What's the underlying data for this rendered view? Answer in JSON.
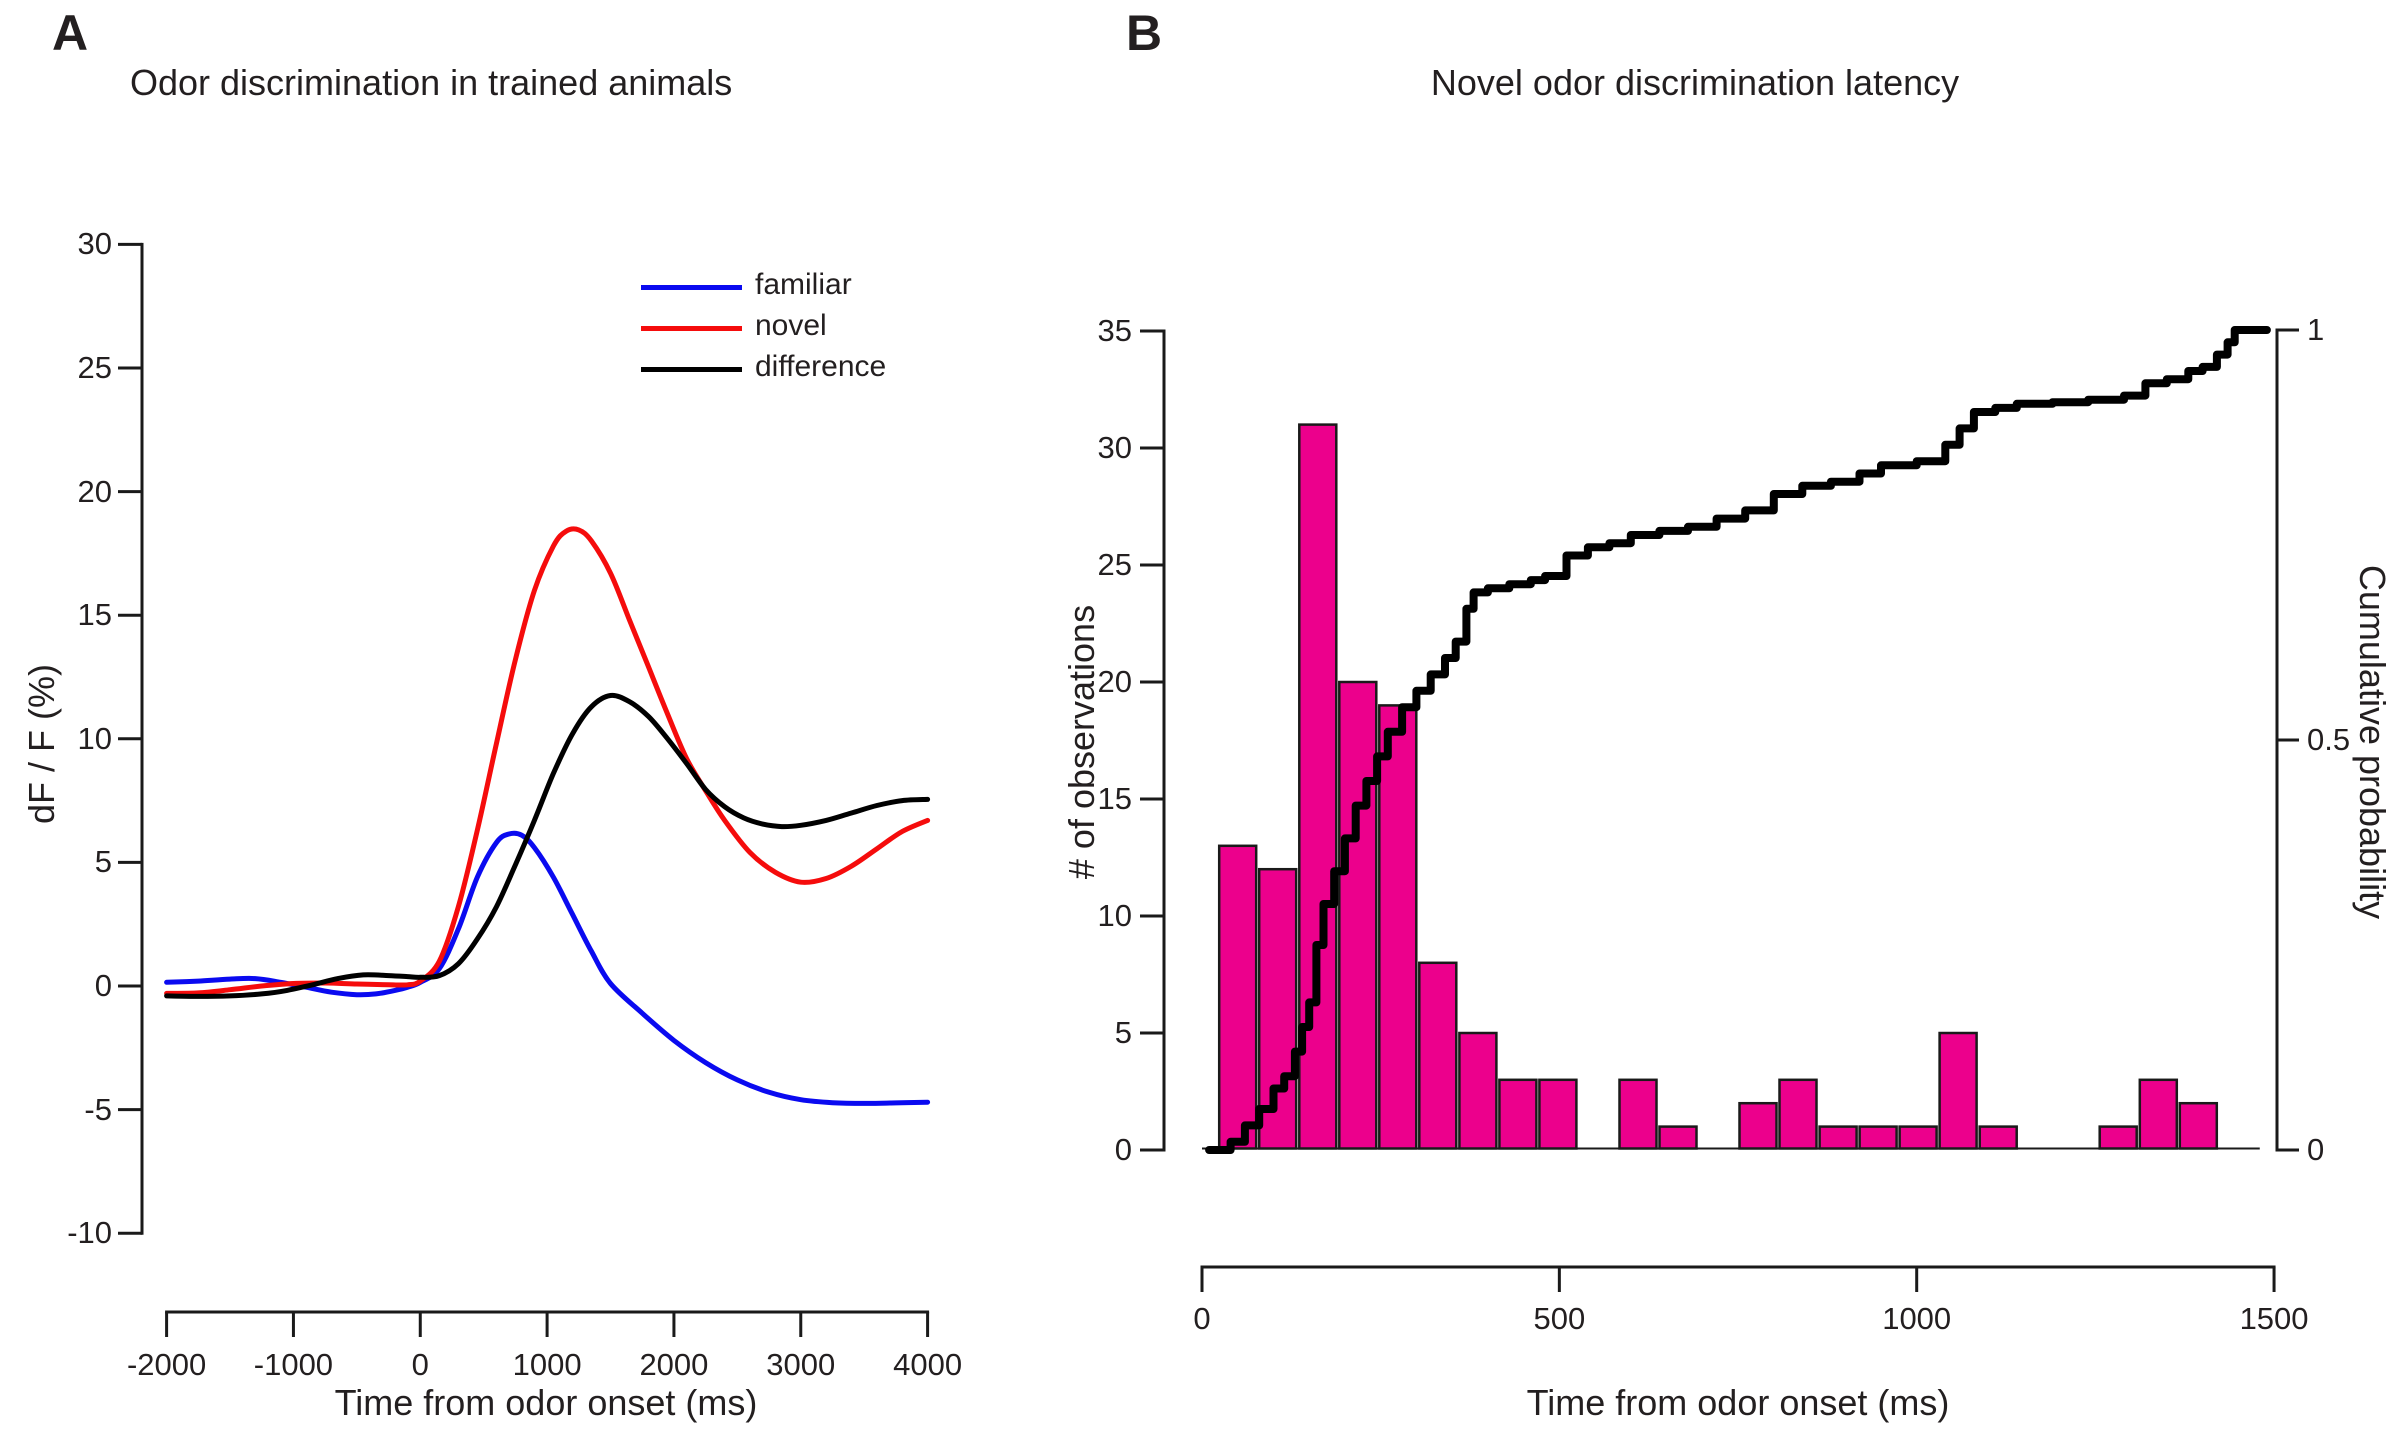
{
  "figure": {
    "background": "#ffffff",
    "panels": [
      {
        "label": "A"
      },
      {
        "label": "B"
      }
    ]
  },
  "chart_data": [
    {
      "panel": "A",
      "type": "line",
      "title": "Odor discrimination in trained animals",
      "xlabel": "Time from odor onset (ms)",
      "ylabel": "dF / F (%)",
      "xlim": [
        -2000,
        4000
      ],
      "ylim": [
        -10,
        30
      ],
      "grid": false,
      "legend_position": "upper right inside",
      "x_ticks": [
        "-2000",
        "-1000",
        "0",
        "1000",
        "2000",
        "3000",
        "4000"
      ],
      "x_tick_values": [
        -2000,
        -1000,
        0,
        1000,
        2000,
        3000,
        4000
      ],
      "y_ticks": [
        "30",
        "25",
        "20",
        "15",
        "10",
        "5",
        "0",
        "-5",
        "-10"
      ],
      "y_tick_values": [
        30,
        25,
        20,
        15,
        10,
        5,
        0,
        -5,
        -10
      ],
      "series": [
        {
          "name": "familiar",
          "color": "#0a0af0",
          "points": [
            [
              -2000,
              0.15
            ],
            [
              -1750,
              0.2
            ],
            [
              -1500,
              0.28
            ],
            [
              -1300,
              0.3
            ],
            [
              -1100,
              0.15
            ],
            [
              -900,
              -0.05
            ],
            [
              -700,
              -0.25
            ],
            [
              -500,
              -0.35
            ],
            [
              -350,
              -0.32
            ],
            [
              -200,
              -0.18
            ],
            [
              -100,
              -0.05
            ],
            [
              0,
              0.15
            ],
            [
              150,
              0.7
            ],
            [
              300,
              2.3
            ],
            [
              450,
              4.4
            ],
            [
              600,
              5.8
            ],
            [
              700,
              6.15
            ],
            [
              800,
              6.1
            ],
            [
              900,
              5.6
            ],
            [
              1050,
              4.4
            ],
            [
              1200,
              2.9
            ],
            [
              1350,
              1.4
            ],
            [
              1500,
              0.1
            ],
            [
              1750,
              -1.1
            ],
            [
              2000,
              -2.2
            ],
            [
              2250,
              -3.1
            ],
            [
              2500,
              -3.8
            ],
            [
              2750,
              -4.3
            ],
            [
              3000,
              -4.6
            ],
            [
              3250,
              -4.72
            ],
            [
              3500,
              -4.75
            ],
            [
              3750,
              -4.73
            ],
            [
              4000,
              -4.7
            ]
          ]
        },
        {
          "name": "novel",
          "color": "#f50c0c",
          "points": [
            [
              -2000,
              -0.3
            ],
            [
              -1750,
              -0.28
            ],
            [
              -1500,
              -0.15
            ],
            [
              -1250,
              0.0
            ],
            [
              -1000,
              0.1
            ],
            [
              -750,
              0.12
            ],
            [
              -500,
              0.08
            ],
            [
              -250,
              0.05
            ],
            [
              -100,
              0.05
            ],
            [
              0,
              0.2
            ],
            [
              150,
              1.0
            ],
            [
              300,
              3.2
            ],
            [
              450,
              6.3
            ],
            [
              600,
              9.8
            ],
            [
              750,
              13.2
            ],
            [
              900,
              16.0
            ],
            [
              1050,
              17.8
            ],
            [
              1150,
              18.4
            ],
            [
              1250,
              18.45
            ],
            [
              1350,
              18.0
            ],
            [
              1500,
              16.7
            ],
            [
              1650,
              14.8
            ],
            [
              1800,
              12.9
            ],
            [
              1950,
              11.0
            ],
            [
              2100,
              9.2
            ],
            [
              2250,
              7.9
            ],
            [
              2400,
              6.7
            ],
            [
              2600,
              5.4
            ],
            [
              2800,
              4.6
            ],
            [
              3000,
              4.2
            ],
            [
              3200,
              4.35
            ],
            [
              3400,
              4.85
            ],
            [
              3600,
              5.55
            ],
            [
              3800,
              6.25
            ],
            [
              4000,
              6.7
            ]
          ]
        },
        {
          "name": "difference",
          "color": "#000000",
          "points": [
            [
              -2000,
              -0.4
            ],
            [
              -1750,
              -0.42
            ],
            [
              -1500,
              -0.4
            ],
            [
              -1250,
              -0.32
            ],
            [
              -1050,
              -0.18
            ],
            [
              -850,
              0.05
            ],
            [
              -650,
              0.3
            ],
            [
              -450,
              0.45
            ],
            [
              -250,
              0.42
            ],
            [
              -100,
              0.38
            ],
            [
              0,
              0.35
            ],
            [
              150,
              0.42
            ],
            [
              300,
              0.9
            ],
            [
              450,
              1.9
            ],
            [
              600,
              3.2
            ],
            [
              750,
              4.9
            ],
            [
              900,
              6.7
            ],
            [
              1050,
              8.6
            ],
            [
              1200,
              10.2
            ],
            [
              1350,
              11.3
            ],
            [
              1500,
              11.75
            ],
            [
              1650,
              11.5
            ],
            [
              1800,
              10.9
            ],
            [
              1950,
              10.0
            ],
            [
              2100,
              9.0
            ],
            [
              2250,
              7.95
            ],
            [
              2400,
              7.25
            ],
            [
              2550,
              6.8
            ],
            [
              2700,
              6.55
            ],
            [
              2850,
              6.45
            ],
            [
              3000,
              6.5
            ],
            [
              3200,
              6.7
            ],
            [
              3400,
              7.0
            ],
            [
              3600,
              7.3
            ],
            [
              3800,
              7.5
            ],
            [
              4000,
              7.55
            ]
          ]
        }
      ]
    },
    {
      "panel": "B",
      "type": "histogram+cumulative",
      "title": "Novel odor discrimination latency",
      "xlabel": "Time from odor onset (ms)",
      "ylabel_left": "# of observations",
      "ylabel_right": "Cumulative probability",
      "xlim": [
        0,
        1500
      ],
      "ylim_left": [
        0,
        35
      ],
      "ylim_right": [
        0,
        1
      ],
      "grid": false,
      "x_ticks": [
        "0",
        "500",
        "1000",
        "1500"
      ],
      "x_tick_values": [
        0,
        500,
        1000,
        1500
      ],
      "y_ticks_left": [
        "0",
        "5",
        "10",
        "15",
        "20",
        "25",
        "30",
        "35"
      ],
      "y_tick_values_left": [
        0,
        5,
        10,
        15,
        20,
        25,
        30,
        35
      ],
      "y_ticks_right": [
        "0",
        "0.5",
        "1"
      ],
      "y_tick_values_right": [
        0,
        0.5,
        1
      ],
      "bar_color": "#ec008c",
      "bar_outline": "#1a1a1a",
      "bin_width_ms": 56,
      "bars": [
        {
          "x": 22,
          "count": 13
        },
        {
          "x": 78,
          "count": 12
        },
        {
          "x": 134,
          "count": 31
        },
        {
          "x": 190,
          "count": 20
        },
        {
          "x": 246,
          "count": 19
        },
        {
          "x": 302,
          "count": 8
        },
        {
          "x": 358,
          "count": 5
        },
        {
          "x": 414,
          "count": 3
        },
        {
          "x": 470,
          "count": 3
        },
        {
          "x": 582,
          "count": 3
        },
        {
          "x": 638,
          "count": 1
        },
        {
          "x": 750,
          "count": 2
        },
        {
          "x": 806,
          "count": 3
        },
        {
          "x": 862,
          "count": 1
        },
        {
          "x": 918,
          "count": 1
        },
        {
          "x": 974,
          "count": 1
        },
        {
          "x": 1030,
          "count": 5
        },
        {
          "x": 1086,
          "count": 1
        },
        {
          "x": 1254,
          "count": 1
        },
        {
          "x": 1310,
          "count": 3
        },
        {
          "x": 1366,
          "count": 2
        }
      ],
      "cumulative": {
        "color": "#000000",
        "points": [
          [
            10,
            0
          ],
          [
            40,
            0.01
          ],
          [
            60,
            0.03
          ],
          [
            80,
            0.05
          ],
          [
            100,
            0.075
          ],
          [
            115,
            0.09
          ],
          [
            130,
            0.12
          ],
          [
            140,
            0.15
          ],
          [
            150,
            0.18
          ],
          [
            160,
            0.25
          ],
          [
            170,
            0.3
          ],
          [
            185,
            0.34
          ],
          [
            200,
            0.38
          ],
          [
            215,
            0.42
          ],
          [
            230,
            0.45
          ],
          [
            245,
            0.48
          ],
          [
            260,
            0.51
          ],
          [
            280,
            0.54
          ],
          [
            300,
            0.56
          ],
          [
            320,
            0.58
          ],
          [
            340,
            0.6
          ],
          [
            355,
            0.62
          ],
          [
            370,
            0.66
          ],
          [
            380,
            0.68
          ],
          [
            400,
            0.685
          ],
          [
            430,
            0.69
          ],
          [
            460,
            0.695
          ],
          [
            480,
            0.7
          ],
          [
            510,
            0.725
          ],
          [
            540,
            0.735
          ],
          [
            570,
            0.74
          ],
          [
            600,
            0.75
          ],
          [
            640,
            0.755
          ],
          [
            680,
            0.76
          ],
          [
            720,
            0.77
          ],
          [
            760,
            0.78
          ],
          [
            800,
            0.8
          ],
          [
            840,
            0.81
          ],
          [
            880,
            0.815
          ],
          [
            920,
            0.825
          ],
          [
            950,
            0.835
          ],
          [
            1000,
            0.84
          ],
          [
            1040,
            0.86
          ],
          [
            1060,
            0.88
          ],
          [
            1080,
            0.9
          ],
          [
            1110,
            0.905
          ],
          [
            1140,
            0.91
          ],
          [
            1190,
            0.912
          ],
          [
            1240,
            0.915
          ],
          [
            1290,
            0.92
          ],
          [
            1320,
            0.935
          ],
          [
            1350,
            0.94
          ],
          [
            1380,
            0.95
          ],
          [
            1400,
            0.955
          ],
          [
            1420,
            0.97
          ],
          [
            1435,
            0.985
          ],
          [
            1445,
            1.0
          ],
          [
            1490,
            1.0
          ]
        ]
      }
    }
  ]
}
